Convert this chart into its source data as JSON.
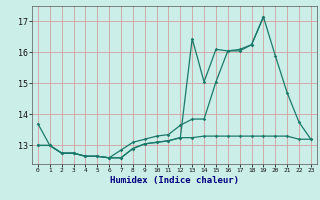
{
  "xlabel": "Humidex (Indice chaleur)",
  "bg_color": "#cceee8",
  "grid_color_major": "#d4a0a0",
  "line_color": "#1a7a6a",
  "x_values": [
    0,
    1,
    2,
    3,
    4,
    5,
    6,
    7,
    8,
    9,
    10,
    11,
    12,
    13,
    14,
    15,
    16,
    17,
    18,
    19,
    20,
    21,
    22,
    23
  ],
  "series1": [
    13.7,
    13.0,
    12.75,
    12.75,
    12.65,
    12.65,
    12.6,
    12.85,
    13.1,
    13.2,
    13.3,
    13.35,
    13.65,
    13.85,
    13.85,
    15.05,
    16.05,
    16.05,
    16.25,
    17.15,
    15.9,
    14.7,
    13.75,
    13.2
  ],
  "series2": [
    13.0,
    13.0,
    12.75,
    12.75,
    12.65,
    12.65,
    12.6,
    12.6,
    12.9,
    13.05,
    13.1,
    13.15,
    13.25,
    16.45,
    15.05,
    16.1,
    16.05,
    16.1,
    16.25,
    17.15,
    null,
    null,
    null,
    null
  ],
  "series3": [
    13.0,
    13.0,
    12.75,
    12.75,
    12.65,
    12.65,
    12.6,
    12.6,
    12.9,
    13.05,
    13.1,
    13.15,
    13.25,
    13.25,
    13.3,
    13.3,
    13.3,
    13.3,
    13.3,
    13.3,
    13.3,
    13.3,
    13.2,
    13.2
  ],
  "ylim": [
    12.4,
    17.5
  ],
  "yticks": [
    13,
    14,
    15,
    16,
    17
  ],
  "xticks": [
    0,
    1,
    2,
    3,
    4,
    5,
    6,
    7,
    8,
    9,
    10,
    11,
    12,
    13,
    14,
    15,
    16,
    17,
    18,
    19,
    20,
    21,
    22,
    23
  ]
}
